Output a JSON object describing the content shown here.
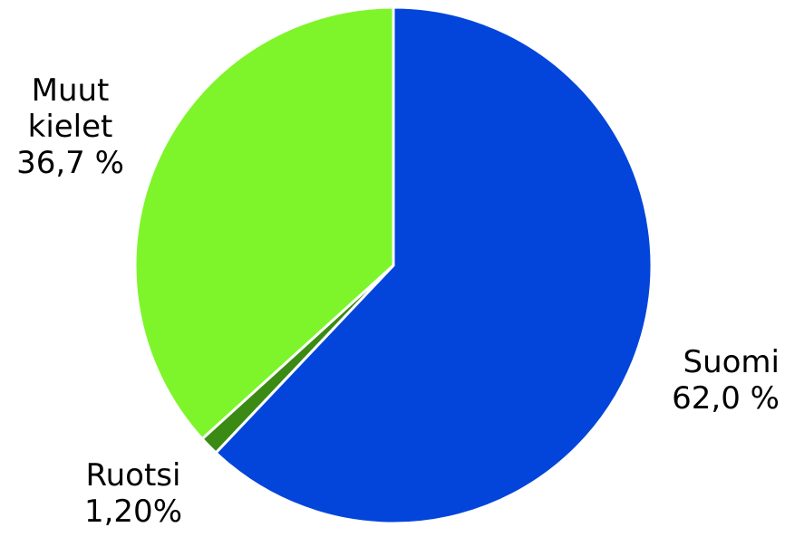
{
  "chart_data": {
    "type": "pie",
    "title": "",
    "start_angle_deg": 0,
    "direction": "clockwise",
    "slices": [
      {
        "name": "Suomi",
        "value": 62.0,
        "value_label": "62,0 %",
        "color": "#0345db"
      },
      {
        "name": "Ruotsi",
        "value": 1.2,
        "value_label": "1,20%",
        "color": "#3a8a14"
      },
      {
        "name": "Muut kielet",
        "name_lines": [
          "Muut",
          "kielet"
        ],
        "value": 36.7,
        "value_label": "36,7 %",
        "color": "#7ef52a"
      }
    ]
  }
}
